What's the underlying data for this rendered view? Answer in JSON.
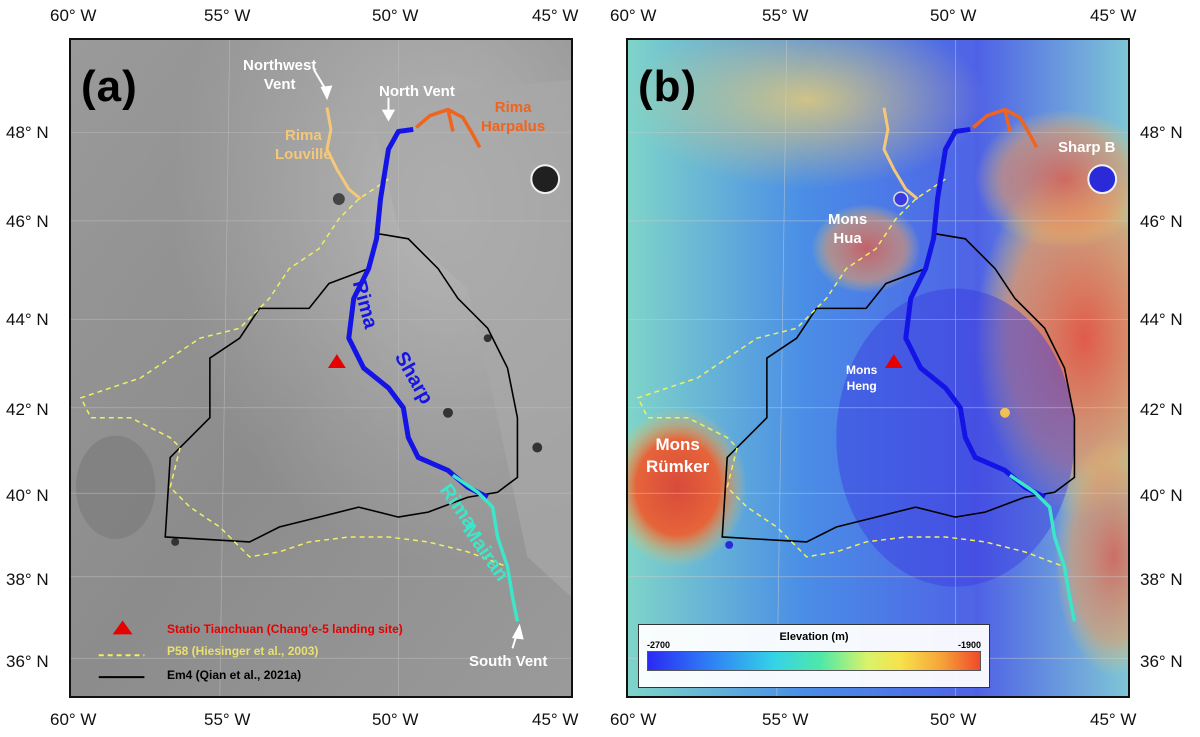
{
  "axes": {
    "lon_labels": [
      "60° W",
      "55° W",
      "50° W",
      "45° W"
    ],
    "lat_labels": [
      "48° N",
      "46° N",
      "44° N",
      "42° N",
      "40° N",
      "38° N",
      "36° N"
    ]
  },
  "panel_a": {
    "letter": "(a)",
    "labels": {
      "northwest_vent": "Northwest\nVent",
      "north_vent": "North Vent",
      "rima_harpalus": "Rima\nHarpalus",
      "rima_louville": "Rima\nLouville",
      "rima_sharp_1": "Rima",
      "rima_sharp_2": "Sharp",
      "rima_mairan_1": "Rima",
      "rima_mairan_2": "Mairan",
      "south_vent": "South Vent"
    },
    "legend": {
      "landing": "Statio Tianchuan (Chang’e-5 landing site)",
      "p58": "P58 (Hiesinger et al., 2003)",
      "em4": "Em4 (Qian et al., 2021a)"
    }
  },
  "panel_b": {
    "letter": "(b)",
    "labels": {
      "sharp_b": "Sharp B",
      "mons_hua": "Mons\nHua",
      "mons_heng": "Mons\nHeng",
      "mons_rumker": "Mons\nRümker"
    },
    "colorbar": {
      "title": "Elevation (m)",
      "min": "-2700",
      "max": "-1900"
    }
  },
  "colors": {
    "rima_sharp": "#1414e6",
    "rima_harpalus": "#f0641e",
    "rima_louville": "#f5c878",
    "rima_mairan": "#3ce6c8",
    "p58": "#f0f064",
    "em4": "#000000",
    "landing": "#e60000"
  }
}
